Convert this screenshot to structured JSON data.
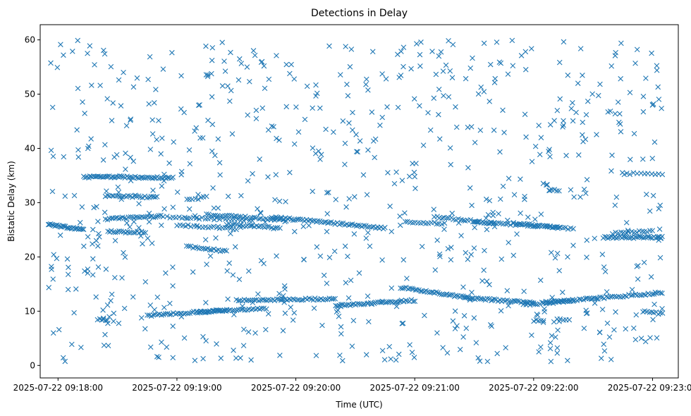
{
  "chart_data": {
    "type": "scatter",
    "title": "Detections in Delay",
    "xlabel": "Time (UTC)",
    "ylabel": "Bistatic Delay (km)",
    "x_unit": "time",
    "xlim": [
      "2025-07-22 09:17:51",
      "2025-07-22 09:23:13"
    ],
    "ylim": [
      -2.3,
      62.8
    ],
    "x_ticks": [
      "2025-07-22 09:18:00",
      "2025-07-22 09:19:00",
      "2025-07-22 09:20:00",
      "2025-07-22 09:21:00",
      "2025-07-22 09:22:00",
      "2025-07-22 09:23:00"
    ],
    "y_ticks": [
      0,
      10,
      20,
      30,
      40,
      50,
      60
    ],
    "grid": false,
    "marker": "x",
    "color": "#1f77b4",
    "tracks": [
      {
        "from": [
          "2025-07-22 09:17:55",
          26.0
        ],
        "to": [
          "2025-07-22 09:18:13",
          25.0
        ],
        "n": 28
      },
      {
        "from": [
          "2025-07-22 09:18:13",
          34.7
        ],
        "to": [
          "2025-07-22 09:18:33",
          34.8
        ],
        "n": 26
      },
      {
        "from": [
          "2025-07-22 09:18:33",
          34.7
        ],
        "to": [
          "2025-07-22 09:18:58",
          34.6
        ],
        "n": 30
      },
      {
        "from": [
          "2025-07-22 09:18:24",
          27.0
        ],
        "to": [
          "2025-07-22 09:18:52",
          27.5
        ],
        "n": 30
      },
      {
        "from": [
          "2025-07-22 09:18:24",
          31.3
        ],
        "to": [
          "2025-07-22 09:18:50",
          31.0
        ],
        "n": 26
      },
      {
        "from": [
          "2025-07-22 09:18:25",
          24.7
        ],
        "to": [
          "2025-07-22 09:18:44",
          24.5
        ],
        "n": 20
      },
      {
        "from": [
          "2025-07-22 09:18:55",
          27.3
        ],
        "to": [
          "2025-07-22 09:19:38",
          26.8
        ],
        "n": 30
      },
      {
        "from": [
          "2025-07-22 09:19:00",
          25.9
        ],
        "to": [
          "2025-07-22 09:19:30",
          25.2
        ],
        "n": 22
      },
      {
        "from": [
          "2025-07-22 09:19:05",
          21.9
        ],
        "to": [
          "2025-07-22 09:19:25",
          21.0
        ],
        "n": 20
      },
      {
        "from": [
          "2025-07-22 09:19:05",
          30.5
        ],
        "to": [
          "2025-07-22 09:19:15",
          31.0
        ],
        "n": 8
      },
      {
        "from": [
          "2025-07-22 09:19:15",
          27.8
        ],
        "to": [
          "2025-07-22 09:19:55",
          26.8
        ],
        "n": 36
      },
      {
        "from": [
          "2025-07-22 09:19:25",
          26.0
        ],
        "to": [
          "2025-07-22 09:19:52",
          25.3
        ],
        "n": 26
      },
      {
        "from": [
          "2025-07-22 09:19:48",
          27.3
        ],
        "to": [
          "2025-07-22 09:20:45",
          25.3
        ],
        "n": 60
      },
      {
        "from": [
          "2025-07-22 09:20:55",
          26.4
        ],
        "to": [
          "2025-07-22 09:21:15",
          26.2
        ],
        "n": 16
      },
      {
        "from": [
          "2025-07-22 09:21:10",
          27.4
        ],
        "to": [
          "2025-07-22 09:21:40",
          26.2
        ],
        "n": 26
      },
      {
        "from": [
          "2025-07-22 09:21:30",
          26.5
        ],
        "to": [
          "2025-07-22 09:22:13",
          25.4
        ],
        "n": 36
      },
      {
        "from": [
          "2025-07-22 09:21:50",
          26.3
        ],
        "to": [
          "2025-07-22 09:22:20",
          25.1
        ],
        "n": 24
      },
      {
        "from": [
          "2025-07-22 09:22:35",
          23.6
        ],
        "to": [
          "2025-07-22 09:23:05",
          23.6
        ],
        "n": 36
      },
      {
        "from": [
          "2025-07-22 09:22:40",
          24.4
        ],
        "to": [
          "2025-07-22 09:23:00",
          24.8
        ],
        "n": 16
      },
      {
        "from": [
          "2025-07-22 09:22:45",
          35.4
        ],
        "to": [
          "2025-07-22 09:23:05",
          35.3
        ],
        "n": 12
      },
      {
        "from": [
          "2025-07-22 09:18:20",
          8.4
        ],
        "to": [
          "2025-07-22 09:18:25",
          8.4
        ],
        "n": 6
      },
      {
        "from": [
          "2025-07-22 09:18:45",
          9.2
        ],
        "to": [
          "2025-07-22 09:19:25",
          10.2
        ],
        "n": 40
      },
      {
        "from": [
          "2025-07-22 09:19:10",
          9.8
        ],
        "to": [
          "2025-07-22 09:19:45",
          10.5
        ],
        "n": 34
      },
      {
        "from": [
          "2025-07-22 09:19:30",
          12.0
        ],
        "to": [
          "2025-07-22 09:20:20",
          12.3
        ],
        "n": 50
      },
      {
        "from": [
          "2025-07-22 09:20:20",
          11.0
        ],
        "to": [
          "2025-07-22 09:21:00",
          12.0
        ],
        "n": 44
      },
      {
        "from": [
          "2025-07-22 09:20:53",
          14.4
        ],
        "to": [
          "2025-07-22 09:21:28",
          12.4
        ],
        "n": 40
      },
      {
        "from": [
          "2025-07-22 09:21:25",
          12.5
        ],
        "to": [
          "2025-07-22 09:22:00",
          11.5
        ],
        "n": 40
      },
      {
        "from": [
          "2025-07-22 09:21:55",
          11.2
        ],
        "to": [
          "2025-07-22 09:22:20",
          11.9
        ],
        "n": 26
      },
      {
        "from": [
          "2025-07-22 09:22:05",
          11.6
        ],
        "to": [
          "2025-07-22 09:23:05",
          13.4
        ],
        "n": 58
      },
      {
        "from": [
          "2025-07-22 09:22:55",
          10.0
        ],
        "to": [
          "2025-07-22 09:23:05",
          9.5
        ],
        "n": 10
      },
      {
        "from": [
          "2025-07-22 09:22:00",
          8.3
        ],
        "to": [
          "2025-07-22 09:22:05",
          8.3
        ],
        "n": 5
      },
      {
        "from": [
          "2025-07-22 09:22:12",
          8.4
        ],
        "to": [
          "2025-07-22 09:22:18",
          8.4
        ],
        "n": 5
      },
      {
        "from": [
          "2025-07-22 09:22:08",
          32.3
        ],
        "to": [
          "2025-07-22 09:22:13",
          32.2
        ],
        "n": 5
      }
    ],
    "scattered_detections": {
      "count": 760,
      "x_range": [
        "2025-07-22 09:17:55",
        "2025-07-22 09:23:05"
      ],
      "y_range": [
        0.5,
        60.0
      ]
    }
  }
}
